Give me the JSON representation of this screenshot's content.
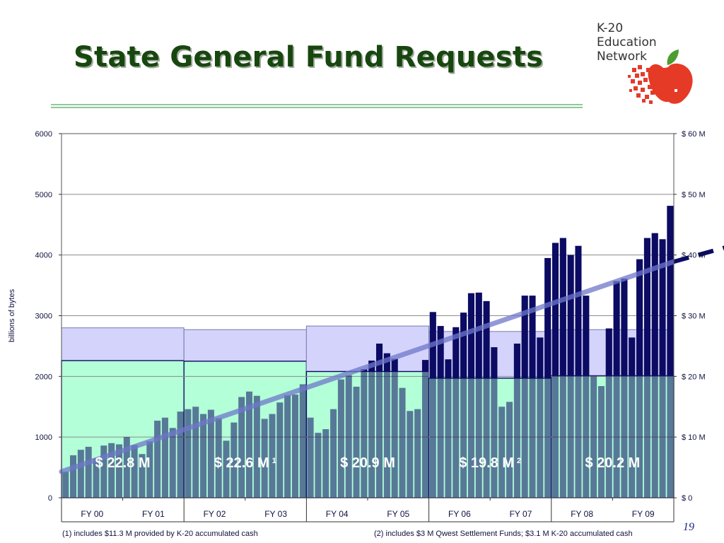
{
  "page": {
    "title": "State General Fund Requests",
    "page_number": "19",
    "footnote1": "(1) includes $11.3 M provided by K-20 accumulated cash",
    "footnote2": "(2) includes $3 M Qwest Settlement Funds; $3.1 M K-20 accumulated cash"
  },
  "logo": {
    "line1": "K-20",
    "line2": "Education",
    "line3": "Network"
  },
  "colors": {
    "title": "#17470f",
    "funded": "#b3ffd8",
    "requested": "#d3d3fc",
    "traffic_bars": "#0b0b63",
    "trend": "#0b0b63"
  },
  "chart_data": {
    "type": "bar",
    "ylabel": "billions of bytes",
    "ylim": [
      0,
      6000
    ],
    "y_ticks": [
      "0",
      "1000",
      "2000",
      "3000",
      "4000",
      "5000",
      "6000"
    ],
    "y2_ticks": [
      "$ 0",
      "$ 10 M",
      "$ 20 M",
      "$ 30 M",
      "$ 40 M",
      "$ 50 M",
      "$ 60 M"
    ],
    "y2lim": [
      0,
      60
    ],
    "categories": [
      "FY 00",
      "FY 01",
      "FY 02",
      "FY 03",
      "FY 04",
      "FY 05",
      "FY 06",
      "FY 07",
      "FY 08",
      "FY 09"
    ],
    "grid": true,
    "bienniums": [
      {
        "label": "$ 22.8 M",
        "note": "",
        "funded": 22.6,
        "requested": 28.0
      },
      {
        "label": "$ 22.6 M",
        "note": "1",
        "funded": 22.5,
        "requested": 27.7
      },
      {
        "label": "$ 20.9 M",
        "note": "",
        "funded": 20.8,
        "requested": 28.3
      },
      {
        "label": "$ 19.8 M",
        "note": "2",
        "funded": 19.7,
        "requested": 27.4
      },
      {
        "label": "$ 20.2 M",
        "note": "",
        "funded": 20.1,
        "requested": 27.7
      }
    ],
    "traffic": [
      430,
      700,
      790,
      840,
      650,
      860,
      900,
      880,
      1000,
      870,
      720,
      930,
      1270,
      1320,
      1150,
      1420,
      1460,
      1500,
      1380,
      1450,
      1310,
      940,
      1240,
      1660,
      1750,
      1680,
      1300,
      1380,
      1570,
      1690,
      1700,
      1870,
      1320,
      1070,
      1130,
      1460,
      1950,
      2020,
      1830,
      2120,
      2260,
      2540,
      2380,
      2290,
      1810,
      1430,
      1460,
      2270,
      3060,
      2830,
      2280,
      2810,
      3050,
      3370,
      3380,
      3240,
      2480,
      1500,
      1580,
      2540,
      3330,
      3330,
      2640,
      3950,
      4200,
      4280,
      4000,
      4150,
      3330,
      2000,
      1840,
      2790,
      3570,
      3610,
      2640,
      3930,
      4280,
      4360,
      4260,
      4810
    ],
    "trend_solid": [
      [
        0,
        430
      ],
      [
        80,
        3890
      ]
    ],
    "trend_dashed": [
      [
        80,
        3890
      ],
      [
        120,
        5280
      ]
    ]
  }
}
